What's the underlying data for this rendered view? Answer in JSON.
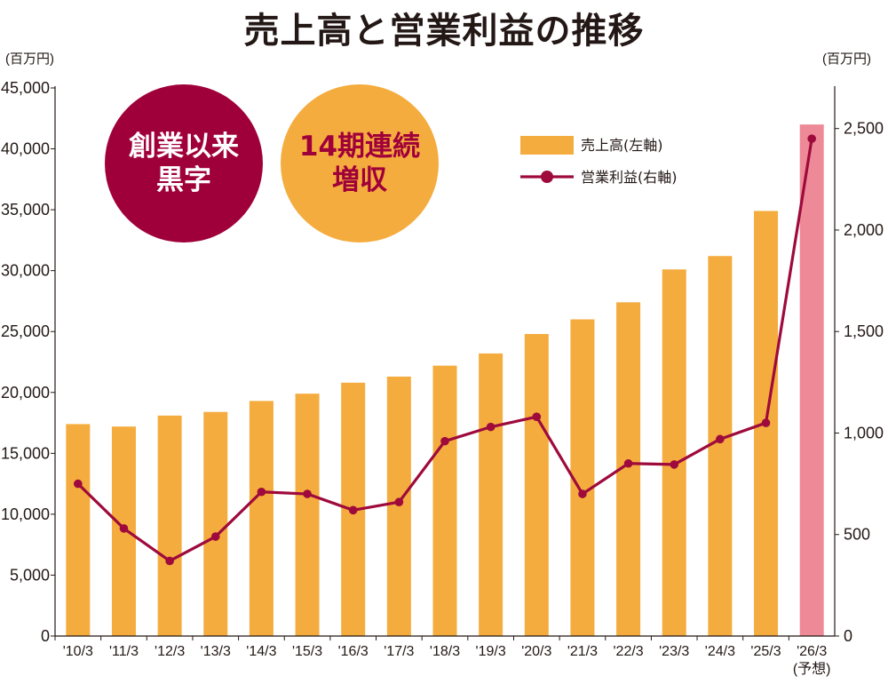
{
  "title": "売上高と営業利益の推移",
  "badges": {
    "left": {
      "text": "創業以来\n黒字",
      "bg": "#a0003a",
      "fg": "#ffffff"
    },
    "right": {
      "text": "14期連続\n増収",
      "bg": "#f4ac3e",
      "fg": "#a0003a"
    }
  },
  "chart_data": {
    "type": "bar+line",
    "title": "売上高と営業利益の推移",
    "categories": [
      "'10/3",
      "'11/3",
      "'12/3",
      "'13/3",
      "'14/3",
      "'15/3",
      "'16/3",
      "'17/3",
      "'18/3",
      "'19/3",
      "'20/3",
      "'21/3",
      "'22/3",
      "'23/3",
      "'24/3",
      "'25/3",
      "'26/3"
    ],
    "forecast_note": "(予想)",
    "forecast_index": 16,
    "left_axis": {
      "unit": "(百万円)",
      "ylim": [
        0,
        45000
      ],
      "ticks": [
        0,
        5000,
        10000,
        15000,
        20000,
        25000,
        30000,
        35000,
        40000,
        45000
      ],
      "tick_labels": [
        "0",
        "5,000",
        "10,000",
        "15,000",
        "20,000",
        "25,000",
        "30,000",
        "35,000",
        "40,000",
        "45,000"
      ]
    },
    "right_axis": {
      "unit": "(百万円)",
      "ylim": [
        0,
        2700
      ],
      "ticks": [
        0,
        500,
        1000,
        1500,
        2000,
        2500
      ],
      "tick_labels": [
        "0",
        "500",
        "1,000",
        "1,500",
        "2,000",
        "2,500"
      ]
    },
    "series": [
      {
        "name": "売上高(左軸)",
        "type": "bar",
        "axis": "left",
        "color": "#f4ac3e",
        "forecast_color": "#ee8a97",
        "values": [
          17400,
          17200,
          18100,
          18400,
          19300,
          19900,
          20800,
          21300,
          22200,
          23200,
          24800,
          26000,
          27400,
          30100,
          31200,
          34900,
          42000
        ]
      },
      {
        "name": "営業利益(右軸)",
        "type": "line",
        "axis": "right",
        "color": "#9e0a3c",
        "values": [
          750,
          530,
          370,
          490,
          710,
          700,
          620,
          660,
          960,
          1030,
          1080,
          700,
          850,
          845,
          970,
          1050,
          2450
        ]
      }
    ],
    "grid": false
  }
}
